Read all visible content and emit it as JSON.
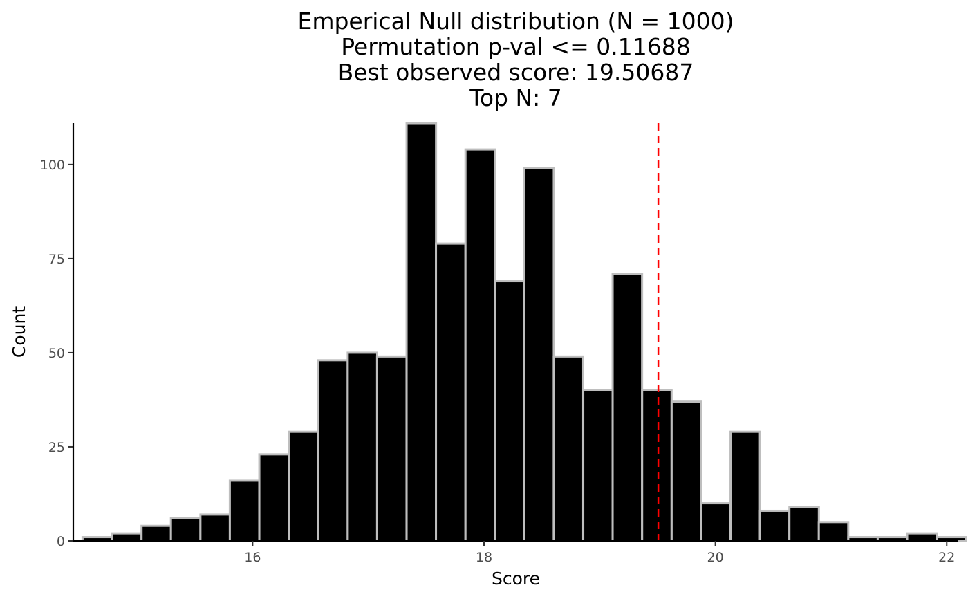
{
  "chart_data": {
    "type": "bar",
    "title_lines": [
      "Emperical Null distribution (N = 1000)",
      "Permutation p-val <= 0.11688",
      "Best observed score: 19.50687",
      "Top N: 7"
    ],
    "xlabel": "Score",
    "ylabel": "Count",
    "xlim": [
      14.45,
      22.1
    ],
    "ylim": [
      0,
      111
    ],
    "x_ticks": [
      16,
      18,
      20,
      22
    ],
    "y_ticks": [
      0,
      25,
      50,
      75,
      100
    ],
    "bin_width": 0.2545,
    "bin_starts": [
      14.53,
      14.785,
      15.04,
      15.294,
      15.549,
      15.803,
      16.058,
      16.312,
      16.567,
      16.822,
      17.076,
      17.331,
      17.585,
      17.84,
      18.094,
      18.349,
      18.603,
      18.858,
      19.112,
      19.367,
      19.622,
      19.876,
      20.131,
      20.385,
      20.64,
      20.894,
      21.149,
      21.403,
      21.658,
      21.912
    ],
    "counts": [
      1,
      2,
      4,
      6,
      7,
      16,
      23,
      29,
      48,
      50,
      49,
      111,
      79,
      104,
      69,
      99,
      49,
      40,
      71,
      40,
      37,
      10,
      29,
      8,
      9,
      5,
      1,
      1,
      2,
      1
    ],
    "reference_line": {
      "x": 19.50687,
      "color": "#ff0000",
      "style": "dashed"
    },
    "colors": {
      "bar_fill": "#000000",
      "bar_outline": "#bebebe",
      "axis": "#000000",
      "tick_text": "#4d4d4d"
    },
    "grid": false,
    "legend": "none"
  }
}
